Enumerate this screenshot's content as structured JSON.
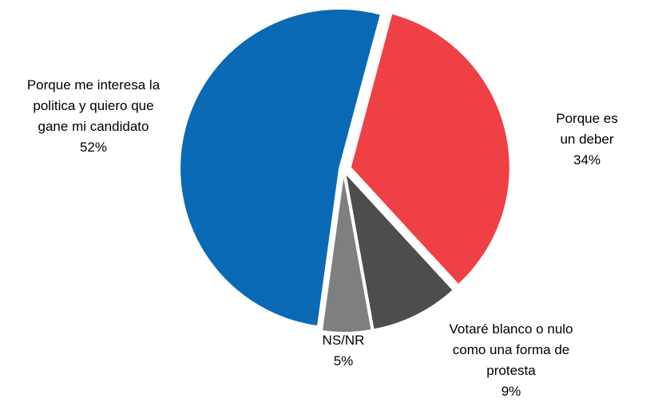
{
  "chart_data": {
    "type": "pie",
    "categories": [
      "Porque es un deber",
      "Votaré blanco o  nulo\ncomo una forma de\nprotesta",
      "NS/NR",
      "Porque me interesa la\npolitica y quiero que\ngane mi candidato"
    ],
    "values": [
      34,
      9,
      5,
      52
    ],
    "value_labels": [
      "34%",
      "9%",
      "5%",
      "52%"
    ],
    "colors": [
      "#ef4045",
      "#4d4d4d",
      "#7f7f7f",
      "#0a69b4"
    ]
  }
}
